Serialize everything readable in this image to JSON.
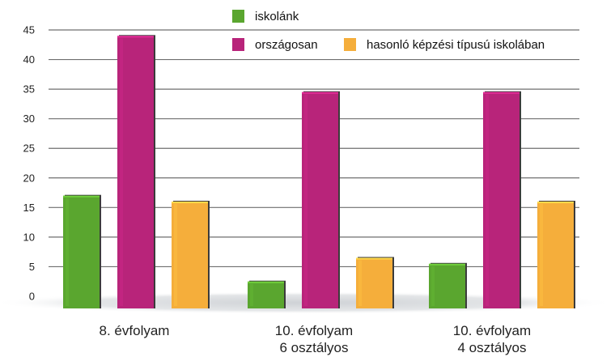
{
  "chart_data": {
    "type": "bar",
    "categories": [
      [
        "8. évfolyam"
      ],
      [
        "10. évfolyam",
        "6 osztályos"
      ],
      [
        "10. évfolyam",
        "4 osztályos"
      ]
    ],
    "series": [
      {
        "name": "iskolánk",
        "values": [
          17,
          2.5,
          5.5
        ],
        "color": "#5aa62f"
      },
      {
        "name": "országosan",
        "values": [
          44,
          34.5,
          34.5
        ],
        "color": "#b8247a"
      },
      {
        "name": "hasonló képzési típusú iskolában",
        "values": [
          16,
          6.5,
          16
        ],
        "color": "#f5ae3b"
      }
    ],
    "ylim": [
      0,
      45
    ],
    "yticks": [
      0,
      5,
      10,
      15,
      20,
      25,
      30,
      35,
      40,
      45
    ],
    "grid": true,
    "legend": "top-right"
  }
}
